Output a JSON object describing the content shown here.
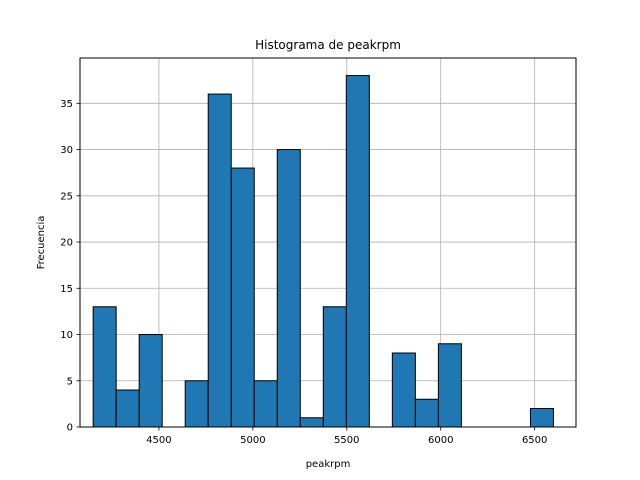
{
  "chart_data": {
    "type": "bar",
    "title": "Histograma de peakrpm",
    "xlabel": "peakrpm",
    "ylabel": "Frecuencia",
    "xlim": [
      4080,
      6720
    ],
    "ylim": [
      0,
      39.9
    ],
    "xticks": [
      4500,
      5000,
      5500,
      6000,
      6500
    ],
    "yticks": [
      0,
      5,
      10,
      15,
      20,
      25,
      30,
      35
    ],
    "grid": true,
    "bar_color": "#1f77b4",
    "edge_color": "#000000",
    "bins": [
      {
        "start": 4150,
        "end": 4272.5,
        "count": 13
      },
      {
        "start": 4272.5,
        "end": 4395,
        "count": 4
      },
      {
        "start": 4395,
        "end": 4517.5,
        "count": 10
      },
      {
        "start": 4517.5,
        "end": 4640,
        "count": 0
      },
      {
        "start": 4640,
        "end": 4762.5,
        "count": 5
      },
      {
        "start": 4762.5,
        "end": 4885,
        "count": 36
      },
      {
        "start": 4885,
        "end": 5007.5,
        "count": 28
      },
      {
        "start": 5007.5,
        "end": 5130,
        "count": 5
      },
      {
        "start": 5130,
        "end": 5252.5,
        "count": 30
      },
      {
        "start": 5252.5,
        "end": 5375,
        "count": 1
      },
      {
        "start": 5375,
        "end": 5497.5,
        "count": 13
      },
      {
        "start": 5497.5,
        "end": 5620,
        "count": 38
      },
      {
        "start": 5620,
        "end": 5742.5,
        "count": 0
      },
      {
        "start": 5742.5,
        "end": 5865,
        "count": 8
      },
      {
        "start": 5865,
        "end": 5987.5,
        "count": 3
      },
      {
        "start": 5987.5,
        "end": 6110,
        "count": 9
      },
      {
        "start": 6110,
        "end": 6232.5,
        "count": 0
      },
      {
        "start": 6232.5,
        "end": 6355,
        "count": 0
      },
      {
        "start": 6355,
        "end": 6477.5,
        "count": 0
      },
      {
        "start": 6477.5,
        "end": 6600,
        "count": 2
      }
    ]
  }
}
